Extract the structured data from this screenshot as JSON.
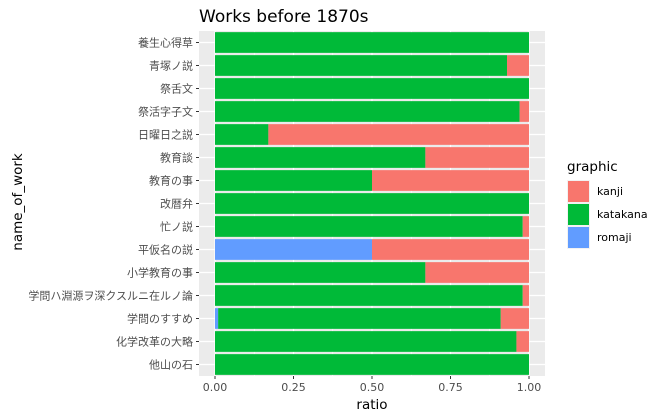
{
  "chart_data": {
    "type": "bar",
    "orientation": "horizontal",
    "stacked": true,
    "title": "Works before 1870s",
    "xlabel": "ratio",
    "ylabel": "name_of_work",
    "xlim": [
      0,
      1
    ],
    "xticks": [
      "0.00",
      "0.25",
      "0.50",
      "0.75",
      "1.00"
    ],
    "grid": true,
    "legend_placement": "right",
    "legend_title": "graphic",
    "categories": [
      "養生心得草",
      "青塚ノ説",
      "祭舌文",
      "祭活字子文",
      "日曜日之説",
      "教育談",
      "教育の事",
      "改暦弁",
      "忙ノ説",
      "平仮名の説",
      "小学教育の事",
      "学問ハ淵源ヲ深クスルニ在ルノ論",
      "学問のすすめ",
      "化学改革の大略",
      "他山の石"
    ],
    "series": [
      {
        "name": "romaji",
        "color": "#619CFF",
        "values": [
          0,
          0,
          0,
          0,
          0,
          0,
          0,
          0,
          0,
          0.5,
          0,
          0,
          0.01,
          0,
          0
        ]
      },
      {
        "name": "katakana",
        "color": "#00BA38",
        "values": [
          1.0,
          0.93,
          1.0,
          0.97,
          0.17,
          0.67,
          0.5,
          1.0,
          0.98,
          0,
          0.67,
          0.98,
          0.9,
          0.96,
          1.0
        ]
      },
      {
        "name": "kanji",
        "color": "#F8766D",
        "values": [
          0,
          0.07,
          0,
          0.03,
          0.83,
          0.33,
          0.5,
          0,
          0.02,
          0.5,
          0.33,
          0.02,
          0.09,
          0.04,
          0
        ]
      }
    ],
    "legend_order": [
      "kanji",
      "katakana",
      "romaji"
    ]
  }
}
